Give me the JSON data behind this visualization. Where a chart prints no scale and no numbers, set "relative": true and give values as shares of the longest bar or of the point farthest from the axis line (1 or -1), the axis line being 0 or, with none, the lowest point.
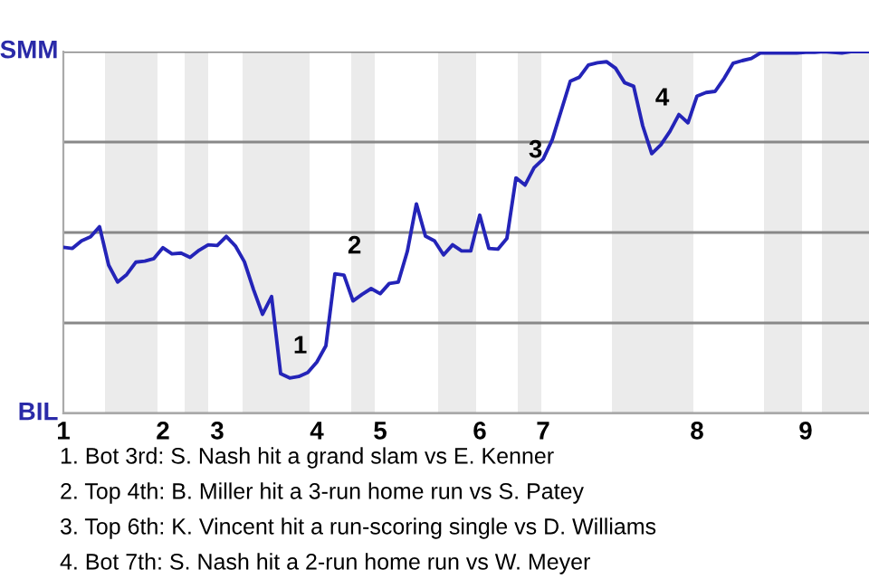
{
  "chart_data": {
    "type": "line",
    "categories": [
      "1",
      null,
      null,
      null,
      null,
      null,
      null,
      null,
      null,
      null,
      null,
      "2",
      null,
      null,
      null,
      null,
      null,
      "3",
      null,
      null,
      null,
      null,
      null,
      null,
      null,
      null,
      null,
      null,
      "4",
      null,
      null,
      null,
      null,
      null,
      null,
      "5",
      null,
      null,
      null,
      null,
      null,
      null,
      null,
      null,
      null,
      null,
      "6",
      null,
      null,
      null,
      null,
      null,
      null,
      "7",
      null,
      null,
      null,
      null,
      null,
      null,
      null,
      null,
      null,
      null,
      null,
      null,
      null,
      null,
      null,
      null,
      "8",
      null,
      null,
      null,
      null,
      null,
      null,
      null,
      null,
      null,
      null,
      null,
      "9",
      null,
      null,
      null,
      null,
      null,
      null,
      null
    ],
    "series": [
      {
        "color": "#2424b8",
        "values": [
          0.459,
          0.456,
          0.477,
          0.488,
          0.516,
          0.41,
          0.363,
          0.384,
          0.418,
          0.421,
          0.428,
          0.458,
          0.441,
          0.443,
          0.431,
          0.451,
          0.466,
          0.464,
          0.489,
          0.463,
          0.419,
          0.343,
          0.274,
          0.323,
          0.11,
          0.098,
          0.102,
          0.113,
          0.142,
          0.187,
          0.386,
          0.382,
          0.311,
          0.329,
          0.345,
          0.331,
          0.359,
          0.363,
          0.448,
          0.579,
          0.49,
          0.477,
          0.438,
          0.466,
          0.449,
          0.449,
          0.548,
          0.456,
          0.454,
          0.484,
          0.651,
          0.631,
          0.679,
          0.703,
          0.756,
          0.837,
          0.918,
          0.929,
          0.963,
          0.969,
          0.972,
          0.954,
          0.914,
          0.904,
          0.795,
          0.718,
          0.742,
          0.779,
          0.826,
          0.803,
          0.877,
          0.887,
          0.89,
          0.926,
          0.968,
          0.975,
          0.981,
          0.996,
          0.996,
          0.996,
          0.996,
          0.996,
          0.998,
          0.998,
          1,
          0.998,
          0.996,
          1,
          1,
          1
        ]
      }
    ],
    "relative": true,
    "grid": "y",
    "line_style": "solid",
    "annotations": [
      "SMM",
      "BIL",
      {
        "text": "1",
        "y": 0.11
      },
      {
        "text": "2",
        "y": 0.386
      },
      {
        "text": "3",
        "y": 0.651
      },
      {
        "text": "4",
        "y": 0.795
      },
      "1. Bot 3rd: S. Nash hit a grand slam vs E. Kenner",
      "2. Top 4th: B. Miller hit a 3-run home run vs S. Patey",
      "3. Top 6th: K. Vincent hit a run-scoring single vs D. Williams",
      "4. Bot 7th: S. Nash hit a 2-run home run vs W. Meyer"
    ]
  }
}
